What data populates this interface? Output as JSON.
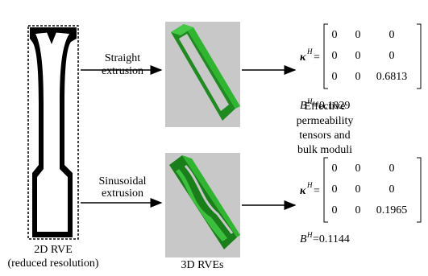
{
  "rve_2d": {
    "label": "2D RVE",
    "sublabel": "(reduced resolution)"
  },
  "extrusions": [
    {
      "line1": "Straight",
      "line2": "extrusion"
    },
    {
      "line1": "Sinusoidal",
      "line2": "extrusion"
    }
  ],
  "rve_3d_label": "3D RVEs",
  "effective_note": [
    "Effective",
    "permeability",
    "tensors and",
    "bulk moduli"
  ],
  "results": [
    {
      "symbol": "κ",
      "symbol_sup": "H",
      "equals": "=",
      "rows": [
        [
          "0",
          "0",
          "0"
        ],
        [
          "0",
          "0",
          "0"
        ],
        [
          "0",
          "0",
          "0.6813"
        ]
      ],
      "bulk_symbol": "B",
      "bulk_sup": "H",
      "bulk_value": "=0.1029"
    },
    {
      "symbol": "κ",
      "symbol_sup": "H",
      "equals": "=",
      "rows": [
        [
          "0",
          "0",
          "0"
        ],
        [
          "0",
          "0",
          "0"
        ],
        [
          "0",
          "0",
          "0.1965"
        ]
      ],
      "bulk_symbol": "B",
      "bulk_sup": "H",
      "bulk_value": "=0.1144"
    }
  ]
}
